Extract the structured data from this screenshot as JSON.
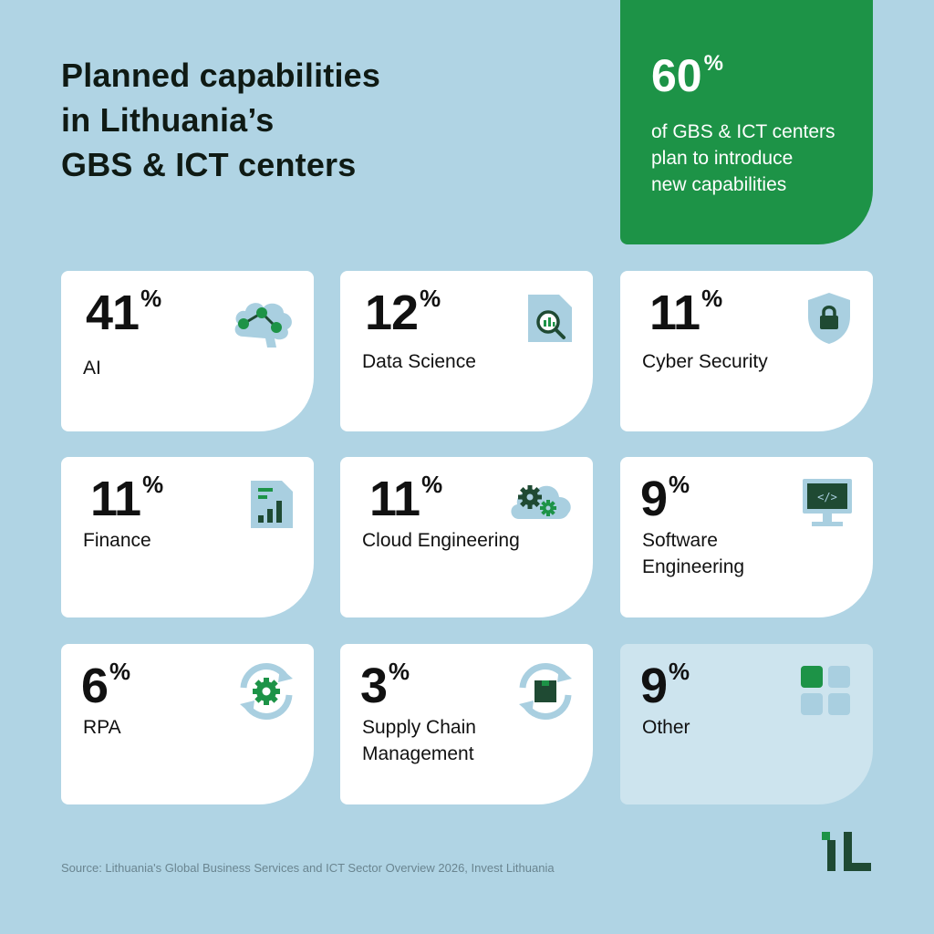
{
  "title": [
    "Planned capabilities",
    "in Lithuania’s",
    "GBS & ICT centers"
  ],
  "hero": {
    "value": "60",
    "unit": "%",
    "text": [
      "of GBS & ICT centers",
      "plan to introduce",
      "new capabilities"
    ]
  },
  "cards": [
    {
      "value": "41",
      "unit": "%",
      "label": [
        "AI"
      ],
      "icon": "brain-network-icon"
    },
    {
      "value": "12",
      "unit": "%",
      "label": [
        "Data Science"
      ],
      "icon": "document-magnifier-icon"
    },
    {
      "value": "11",
      "unit": "%",
      "label": [
        "Cyber Security"
      ],
      "icon": "shield-lock-icon"
    },
    {
      "value": "11",
      "unit": "%",
      "label": [
        "Finance"
      ],
      "icon": "report-chart-icon"
    },
    {
      "value": "11",
      "unit": "%",
      "label": [
        "Cloud Engineering"
      ],
      "icon": "cloud-gears-icon"
    },
    {
      "value": "9",
      "unit": "%",
      "label": [
        "Software",
        "Engineering"
      ],
      "icon": "monitor-code-icon"
    },
    {
      "value": "6",
      "unit": "%",
      "label": [
        "RPA"
      ],
      "icon": "gear-cycle-icon"
    },
    {
      "value": "3",
      "unit": "%",
      "label": [
        "Supply Chain",
        "Management"
      ],
      "icon": "box-cycle-icon"
    },
    {
      "value": "9",
      "unit": "%",
      "label": [
        "Other"
      ],
      "icon": "grid-squares-icon"
    }
  ],
  "source": "Source: Lithuania's Global Business Services and ICT Sector Overview 2026, Invest Lithuania",
  "colors": {
    "background": "#b0d4e4",
    "accent_green": "#1d9347",
    "dark_green": "#1f4a33",
    "icon_light": "#a9cfe0",
    "card": "#ffffff",
    "card_other": "#cde4ee"
  }
}
